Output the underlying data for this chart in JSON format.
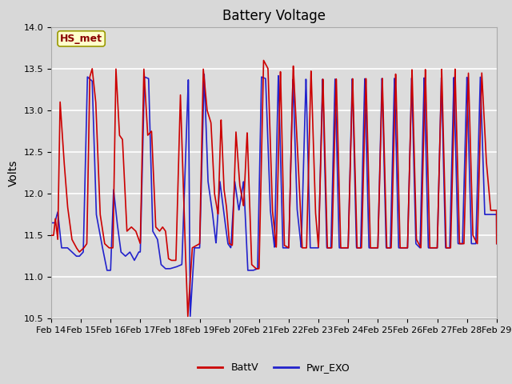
{
  "title": "Battery Voltage",
  "ylabel": "Volts",
  "ylim": [
    10.5,
    14.0
  ],
  "yticks": [
    10.5,
    11.0,
    11.5,
    12.0,
    12.5,
    13.0,
    13.5,
    14.0
  ],
  "xtick_labels": [
    "Feb 14",
    "Feb 15",
    "Feb 16",
    "Feb 17",
    "Feb 18",
    "Feb 19",
    "Feb 20",
    "Feb 21",
    "Feb 22",
    "Feb 23",
    "Feb 24",
    "Feb 25",
    "Feb 26",
    "Feb 27",
    "Feb 28",
    "Feb 29"
  ],
  "line1_color": "#cc0000",
  "line2_color": "#2222cc",
  "line_width": 1.2,
  "legend_labels": [
    "BattV",
    "Pwr_EXO"
  ],
  "annotation_text": "HS_met",
  "background_color": "#dcdcdc",
  "grid_color": "#ffffff",
  "title_fontsize": 12,
  "axis_fontsize": 10,
  "tick_fontsize": 8
}
